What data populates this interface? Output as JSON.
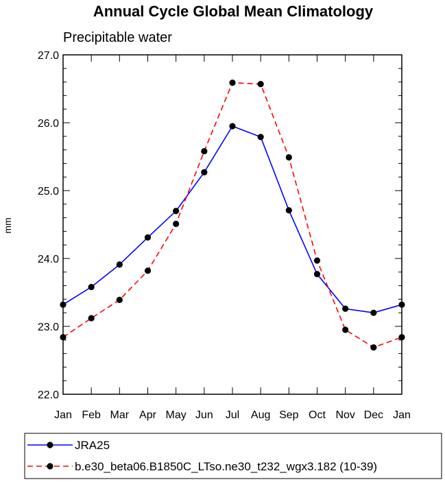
{
  "chart_data": {
    "type": "line",
    "title": "Annual Cycle Global Mean Climatology",
    "subtitle": "Precipitable water",
    "xlabel": "",
    "ylabel": "mm",
    "categories": [
      "Jan",
      "Feb",
      "Mar",
      "Apr",
      "May",
      "Jun",
      "Jul",
      "Aug",
      "Sep",
      "Oct",
      "Nov",
      "Dec",
      "Jan"
    ],
    "ylim": [
      22.0,
      27.0
    ],
    "yticks": [
      "22.0",
      "23.0",
      "24.0",
      "25.0",
      "26.0",
      "27.0"
    ],
    "grid": false,
    "legend_position": "bottom",
    "series": [
      {
        "name": "JRA25",
        "color": "#0000ff",
        "dash": "solid",
        "values": [
          23.32,
          23.58,
          23.91,
          24.31,
          24.7,
          25.27,
          25.95,
          25.79,
          24.71,
          23.77,
          23.26,
          23.2,
          23.32
        ]
      },
      {
        "name": "b.e30_beta06.B1850C_LTso.ne30_t232_wgx3.182 (10-39)",
        "color": "#ff0000",
        "dash": "dashed",
        "values": [
          22.84,
          23.12,
          23.39,
          23.82,
          24.51,
          25.58,
          26.59,
          26.57,
          25.49,
          23.97,
          22.95,
          22.69,
          22.84
        ]
      }
    ]
  }
}
